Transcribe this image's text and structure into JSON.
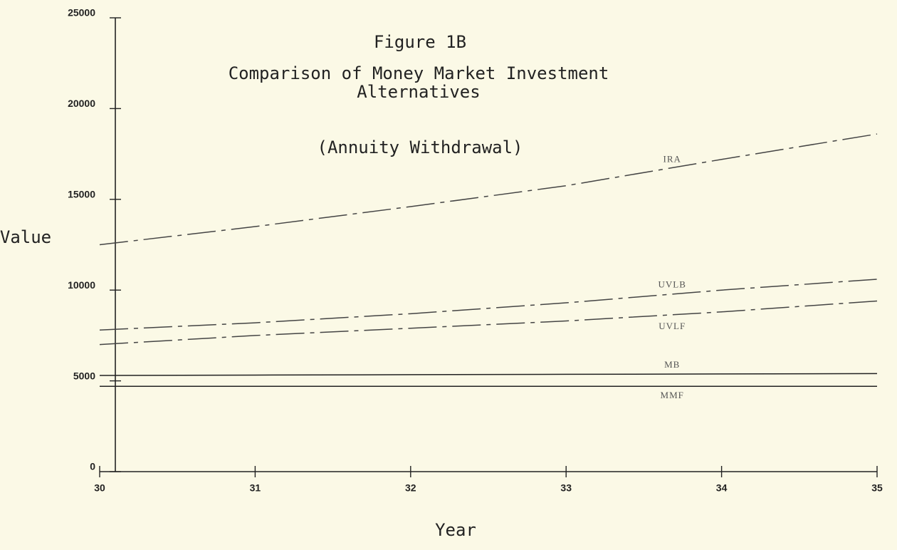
{
  "chart_data": {
    "type": "line",
    "title": "Figure 1B",
    "subtitle": [
      "Comparison of Money Market Investment",
      "Alternatives"
    ],
    "note": "(Annuity Withdrawal)",
    "x_label": "Year",
    "y_label": "Value",
    "x": [
      30,
      31,
      32,
      33,
      34,
      35
    ],
    "series": [
      {
        "name": "IRA",
        "color": "#444444",
        "style": "dashed",
        "values": [
          12500,
          13500,
          14600,
          15750,
          17200,
          18600
        ]
      },
      {
        "name": "UVLB",
        "color": "#444444",
        "style": "dashed",
        "values": [
          7800,
          8200,
          8700,
          9300,
          10000,
          10600
        ]
      },
      {
        "name": "UVLF",
        "color": "#444444",
        "style": "dashed",
        "values": [
          7000,
          7500,
          7900,
          8300,
          8800,
          9400
        ]
      },
      {
        "name": "MB",
        "color": "#222222",
        "style": "solid",
        "values": [
          5300,
          5320,
          5340,
          5360,
          5380,
          5400
        ]
      },
      {
        "name": "MMF",
        "color": "#222222",
        "style": "solid",
        "values": [
          4700,
          4700,
          4700,
          4700,
          4700,
          4700
        ]
      }
    ],
    "xlim": [
      30,
      35
    ],
    "xticks": [
      30,
      31,
      32,
      33,
      34,
      35
    ],
    "ylim": [
      0,
      25000
    ],
    "yticks": [
      0,
      5000,
      10000,
      15000,
      20000,
      25000
    ],
    "grid": false
  }
}
